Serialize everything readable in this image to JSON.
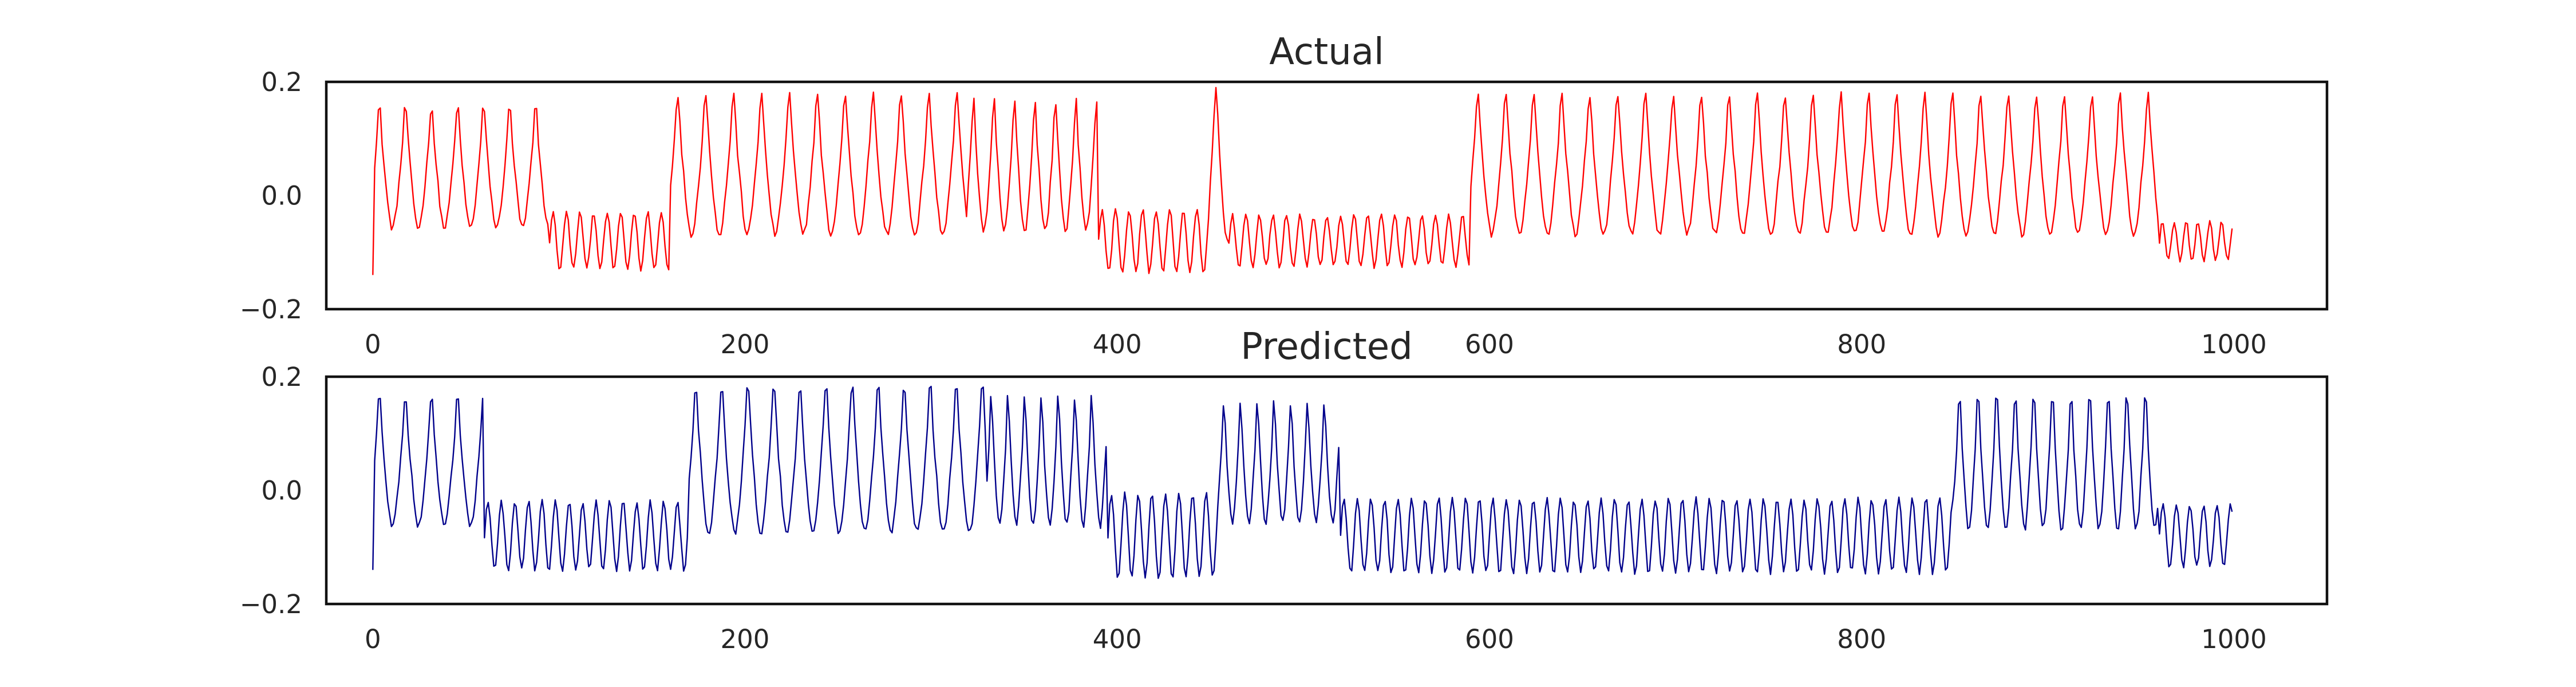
{
  "chart_data": [
    {
      "type": "line",
      "title": "Actual",
      "xlabel": "",
      "ylabel": "",
      "xlim": [
        -25,
        1050
      ],
      "ylim": [
        -0.2,
        0.2
      ],
      "xticks": [
        0,
        200,
        400,
        600,
        800,
        1000
      ],
      "xtick_labels": [
        "0",
        "200",
        "400",
        "600",
        "800",
        "1000"
      ],
      "yticks": [
        -0.2,
        0.0,
        0.2
      ],
      "ytick_labels": [
        "−0.2",
        "0.0",
        "0.2"
      ],
      "grid": false,
      "color": "#ff0000",
      "x_start": 0,
      "x_step": 1,
      "points": 1000,
      "segments": [
        {
          "start": 0,
          "end": 95,
          "kind": "high",
          "amp": 0.14,
          "period": 14
        },
        {
          "start": 95,
          "end": 160,
          "kind": "low",
          "amp": 0.1,
          "period": 8
        },
        {
          "start": 160,
          "end": 320,
          "kind": "high",
          "amp": 0.16,
          "period": 15
        },
        {
          "start": 320,
          "end": 390,
          "kind": "high",
          "amp": 0.15,
          "period": 11
        },
        {
          "start": 390,
          "end": 450,
          "kind": "low",
          "amp": 0.11,
          "period": 8
        },
        {
          "start": 450,
          "end": 460,
          "kind": "high",
          "amp": 0.18,
          "period": 12
        },
        {
          "start": 460,
          "end": 590,
          "kind": "low",
          "amp": 0.09,
          "period": 8
        },
        {
          "start": 590,
          "end": 960,
          "kind": "high",
          "amp": 0.16,
          "period": 15
        },
        {
          "start": 960,
          "end": 1000,
          "kind": "low",
          "amp": 0.07,
          "period": 7
        }
      ]
    },
    {
      "type": "line",
      "title": "Predicted",
      "xlabel": "",
      "ylabel": "",
      "xlim": [
        -25,
        1050
      ],
      "ylim": [
        -0.2,
        0.2
      ],
      "xticks": [
        0,
        200,
        400,
        600,
        800,
        1000
      ],
      "xtick_labels": [
        "0",
        "200",
        "400",
        "600",
        "800",
        "1000"
      ],
      "yticks": [
        -0.2,
        0.0,
        0.2
      ],
      "ytick_labels": [
        "−0.2",
        "0.0",
        "0.2"
      ],
      "grid": false,
      "color": "#00008b",
      "x_start": 0,
      "x_step": 1,
      "points": 1000,
      "segments": [
        {
          "start": 0,
          "end": 60,
          "kind": "high",
          "amp": 0.15,
          "period": 14
        },
        {
          "start": 60,
          "end": 170,
          "kind": "low",
          "amp": 0.12,
          "period": 8
        },
        {
          "start": 170,
          "end": 330,
          "kind": "high",
          "amp": 0.17,
          "period": 14
        },
        {
          "start": 330,
          "end": 395,
          "kind": "high",
          "amp": 0.15,
          "period": 9
        },
        {
          "start": 395,
          "end": 455,
          "kind": "low",
          "amp": 0.15,
          "period": 8
        },
        {
          "start": 455,
          "end": 520,
          "kind": "high",
          "amp": 0.14,
          "period": 9
        },
        {
          "start": 520,
          "end": 850,
          "kind": "low",
          "amp": 0.13,
          "period": 8
        },
        {
          "start": 850,
          "end": 960,
          "kind": "high",
          "amp": 0.16,
          "period": 10
        },
        {
          "start": 960,
          "end": 1000,
          "kind": "low",
          "amp": 0.11,
          "period": 8
        }
      ]
    }
  ]
}
